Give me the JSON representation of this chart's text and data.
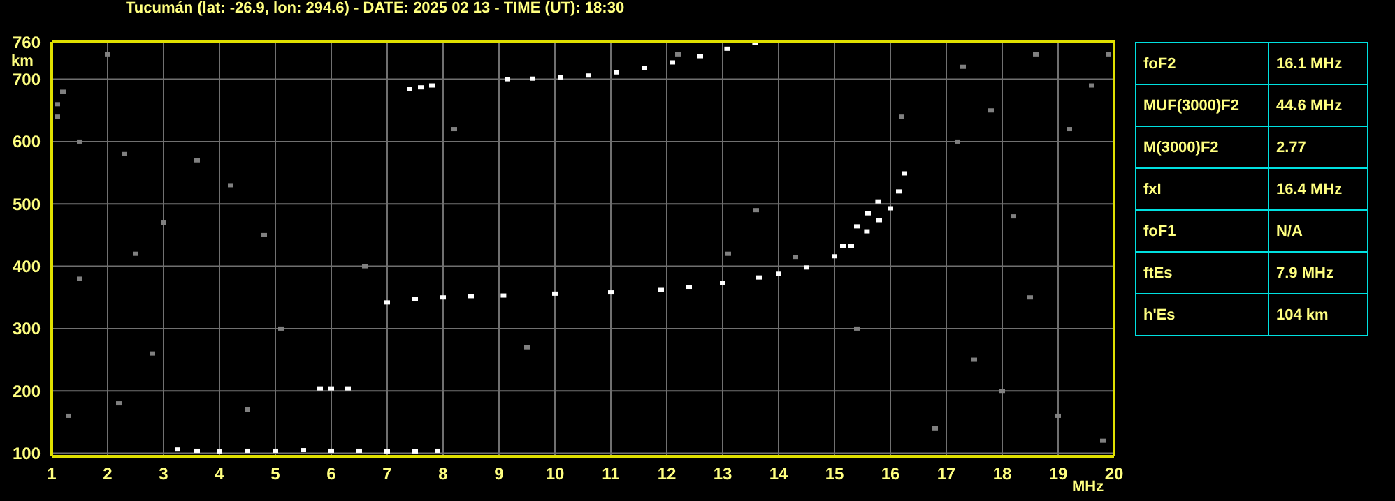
{
  "chart_data": [
    {
      "type": "scatter",
      "title": "Tucumán (lat: -26.9, lon: 294.6) - DATE: 2025 02 13 - TIME (UT): 18:30",
      "xlabel": "MHz",
      "ylabel": "km",
      "xlim": [
        1,
        20
      ],
      "xticks": [
        1,
        2,
        3,
        4,
        5,
        6,
        7,
        8,
        9,
        10,
        11,
        12,
        13,
        14,
        15,
        16,
        17,
        18,
        19,
        20
      ],
      "ylim": [
        95,
        760
      ],
      "yticks": [
        100,
        200,
        300,
        400,
        500,
        600,
        700,
        760
      ],
      "grid": true,
      "marker": "square",
      "series": [
        {
          "color": "#ffffff",
          "x": [
            7.0,
            7.5,
            8.0,
            8.5,
            9.08,
            10.0,
            11.0,
            11.9,
            12.4,
            13.0,
            13.65,
            14.0,
            14.5,
            15.0,
            15.15,
            15.4,
            15.6,
            15.78
          ],
          "values": [
            342,
            348,
            350,
            352,
            353,
            356,
            358,
            362,
            367,
            373,
            382,
            388,
            398,
            416,
            433,
            464,
            485,
            504
          ]
        },
        {
          "color": "#ffffff",
          "x": [
            15.3,
            15.58,
            15.8,
            16.0,
            16.15,
            16.25
          ],
          "values": [
            432,
            456,
            474,
            493,
            520,
            549
          ]
        },
        {
          "color": "#ffffff",
          "x": [
            3.25,
            3.6,
            4.0,
            4.5,
            5.0,
            5.5,
            6.0,
            6.5,
            7.0,
            7.5,
            7.9
          ],
          "values": [
            106,
            104,
            103,
            104,
            104,
            105,
            104,
            104,
            103,
            103,
            104
          ]
        },
        {
          "color": "#ffffff",
          "x": [
            9.15,
            9.6,
            10.1,
            10.6,
            11.1,
            11.6,
            12.1,
            12.6,
            13.08,
            13.58
          ],
          "values": [
            700,
            701,
            703,
            706,
            711,
            718,
            727,
            737,
            749,
            758
          ]
        },
        {
          "color": "#ffffff",
          "x": [
            7.4,
            7.6,
            7.8
          ],
          "values": [
            684,
            687,
            690
          ]
        },
        {
          "color": "#ffffff",
          "x": [
            5.8,
            6.0,
            6.3
          ],
          "values": [
            204,
            204,
            204
          ]
        },
        {
          "color": "#808080",
          "x": [
            1.1,
            1.2,
            1.1,
            1.5,
            2.0,
            2.3,
            3.6,
            4.2,
            2.5,
            1.5,
            3.0,
            1.3,
            2.2,
            2.8,
            4.5,
            5.1,
            17.2,
            17.8,
            18.2,
            18.5,
            19.2,
            19.6,
            17.5,
            18.0,
            19.0,
            19.8,
            16.8,
            17.3,
            18.6,
            19.9,
            12.2,
            13.6,
            14.3,
            13.1,
            15.4,
            16.2,
            8.2,
            6.6,
            4.8,
            9.5
          ],
          "values": [
            660,
            680,
            640,
            600,
            740,
            580,
            570,
            530,
            420,
            380,
            470,
            160,
            180,
            260,
            170,
            300,
            600,
            650,
            480,
            350,
            620,
            690,
            250,
            200,
            160,
            120,
            140,
            720,
            740,
            740,
            740,
            490,
            415,
            420,
            300,
            640,
            620,
            400,
            450,
            270
          ]
        }
      ]
    },
    {
      "type": "other",
      "annotations": [
        "foF2",
        "16.1 MHz",
        "MUF(3000)F2",
        "44.6 MHz",
        "M(3000)F2",
        "2.77",
        "fxI",
        "16.4 MHz",
        "foF1",
        "N/A",
        "ftEs",
        "7.9 MHz",
        "h'Es",
        "104 km"
      ]
    }
  ]
}
